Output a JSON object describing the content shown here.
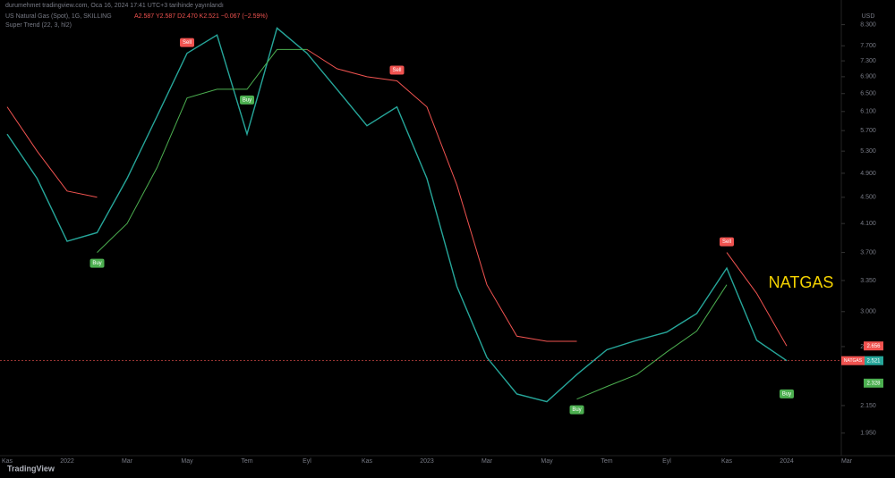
{
  "header": {
    "published": "durumehmet tradingview.com, Oca 16, 2024 17:41 UTC+3 tarihinde yayınlandı",
    "symbol": "US Natural Gas (Spot), 1G, SKILLING",
    "ohlc": "A2.587 Y2.587 D2.470 K2.521 −0.067 (−2.59%)",
    "indicator": "Super Trend (22, 3, hl2)",
    "currency": "USD",
    "logo": "TradingView"
  },
  "chart_data": {
    "type": "line",
    "annotation": "NATGAS",
    "price_tag": "NATGAS",
    "categories": [
      "Kas",
      null,
      "2022",
      null,
      "Mar",
      null,
      "May",
      null,
      "Tem",
      null,
      "Eyl",
      null,
      "Kas",
      null,
      "2023",
      null,
      "Mar",
      null,
      "May",
      null,
      "Tem",
      null,
      "Eyl",
      null,
      "Kas",
      null,
      "2024",
      null,
      "Mar"
    ],
    "series": [
      {
        "name": "Price",
        "color": "#26a69a",
        "values": [
          5.63,
          4.81,
          3.85,
          3.97,
          4.81,
          6.0,
          7.5,
          8.0,
          5.63,
          8.2,
          7.5,
          6.6,
          5.8,
          6.2,
          4.81,
          3.28,
          2.55,
          2.24,
          2.18,
          2.4,
          2.62,
          2.71,
          2.79,
          2.98,
          3.5,
          2.71,
          2.521,
          null,
          null
        ]
      },
      {
        "name": "Uptrend",
        "color": "#4caf50",
        "values": [
          null,
          null,
          null,
          3.7,
          4.1,
          5.0,
          6.4,
          6.6,
          6.6,
          7.6,
          7.6,
          null,
          null,
          null,
          null,
          null,
          null,
          null,
          null,
          2.2,
          2.3,
          2.4,
          2.6,
          2.8,
          3.3,
          null,
          2.328,
          null,
          null
        ]
      },
      {
        "name": "Downtrend",
        "color": "#f05350",
        "values": [
          6.2,
          5.3,
          4.6,
          4.5,
          null,
          null,
          null,
          null,
          null,
          null,
          7.6,
          7.1,
          6.9,
          6.8,
          6.2,
          4.7,
          3.3,
          2.75,
          2.7,
          2.7,
          null,
          null,
          null,
          null,
          3.7,
          3.2,
          2.656,
          null,
          null
        ]
      }
    ],
    "signals": [
      null,
      null,
      null,
      "Buy",
      null,
      null,
      "Sell",
      null,
      "Buy",
      null,
      null,
      null,
      null,
      "Sell",
      null,
      null,
      null,
      null,
      null,
      "Buy",
      null,
      null,
      null,
      null,
      "Sell",
      null,
      "Buy",
      null,
      null
    ],
    "log_scale": true,
    "ylim": [
      1.8,
      8.72
    ],
    "yticks": [
      {
        "value": 8.3,
        "label": "8.300"
      },
      {
        "value": 7.7,
        "label": "7.700"
      },
      {
        "value": 7.3,
        "label": "7.300"
      },
      {
        "value": 6.9,
        "label": "6.900"
      },
      {
        "value": 6.5,
        "label": "6.500"
      },
      {
        "value": 6.1,
        "label": "6.100"
      },
      {
        "value": 5.7,
        "label": "5.700"
      },
      {
        "value": 5.3,
        "label": "5.300"
      },
      {
        "value": 4.9,
        "label": "4.900"
      },
      {
        "value": 4.5,
        "label": "4.500"
      },
      {
        "value": 4.1,
        "label": "4.100"
      },
      {
        "value": 3.7,
        "label": "3.700"
      },
      {
        "value": 3.35,
        "label": "3.350"
      },
      {
        "value": 3.0,
        "label": "3.000"
      },
      {
        "value": 2.65,
        "label": "2.650"
      },
      {
        "value": 2.15,
        "label": "2.150"
      },
      {
        "value": 1.95,
        "label": "1.950"
      }
    ]
  }
}
